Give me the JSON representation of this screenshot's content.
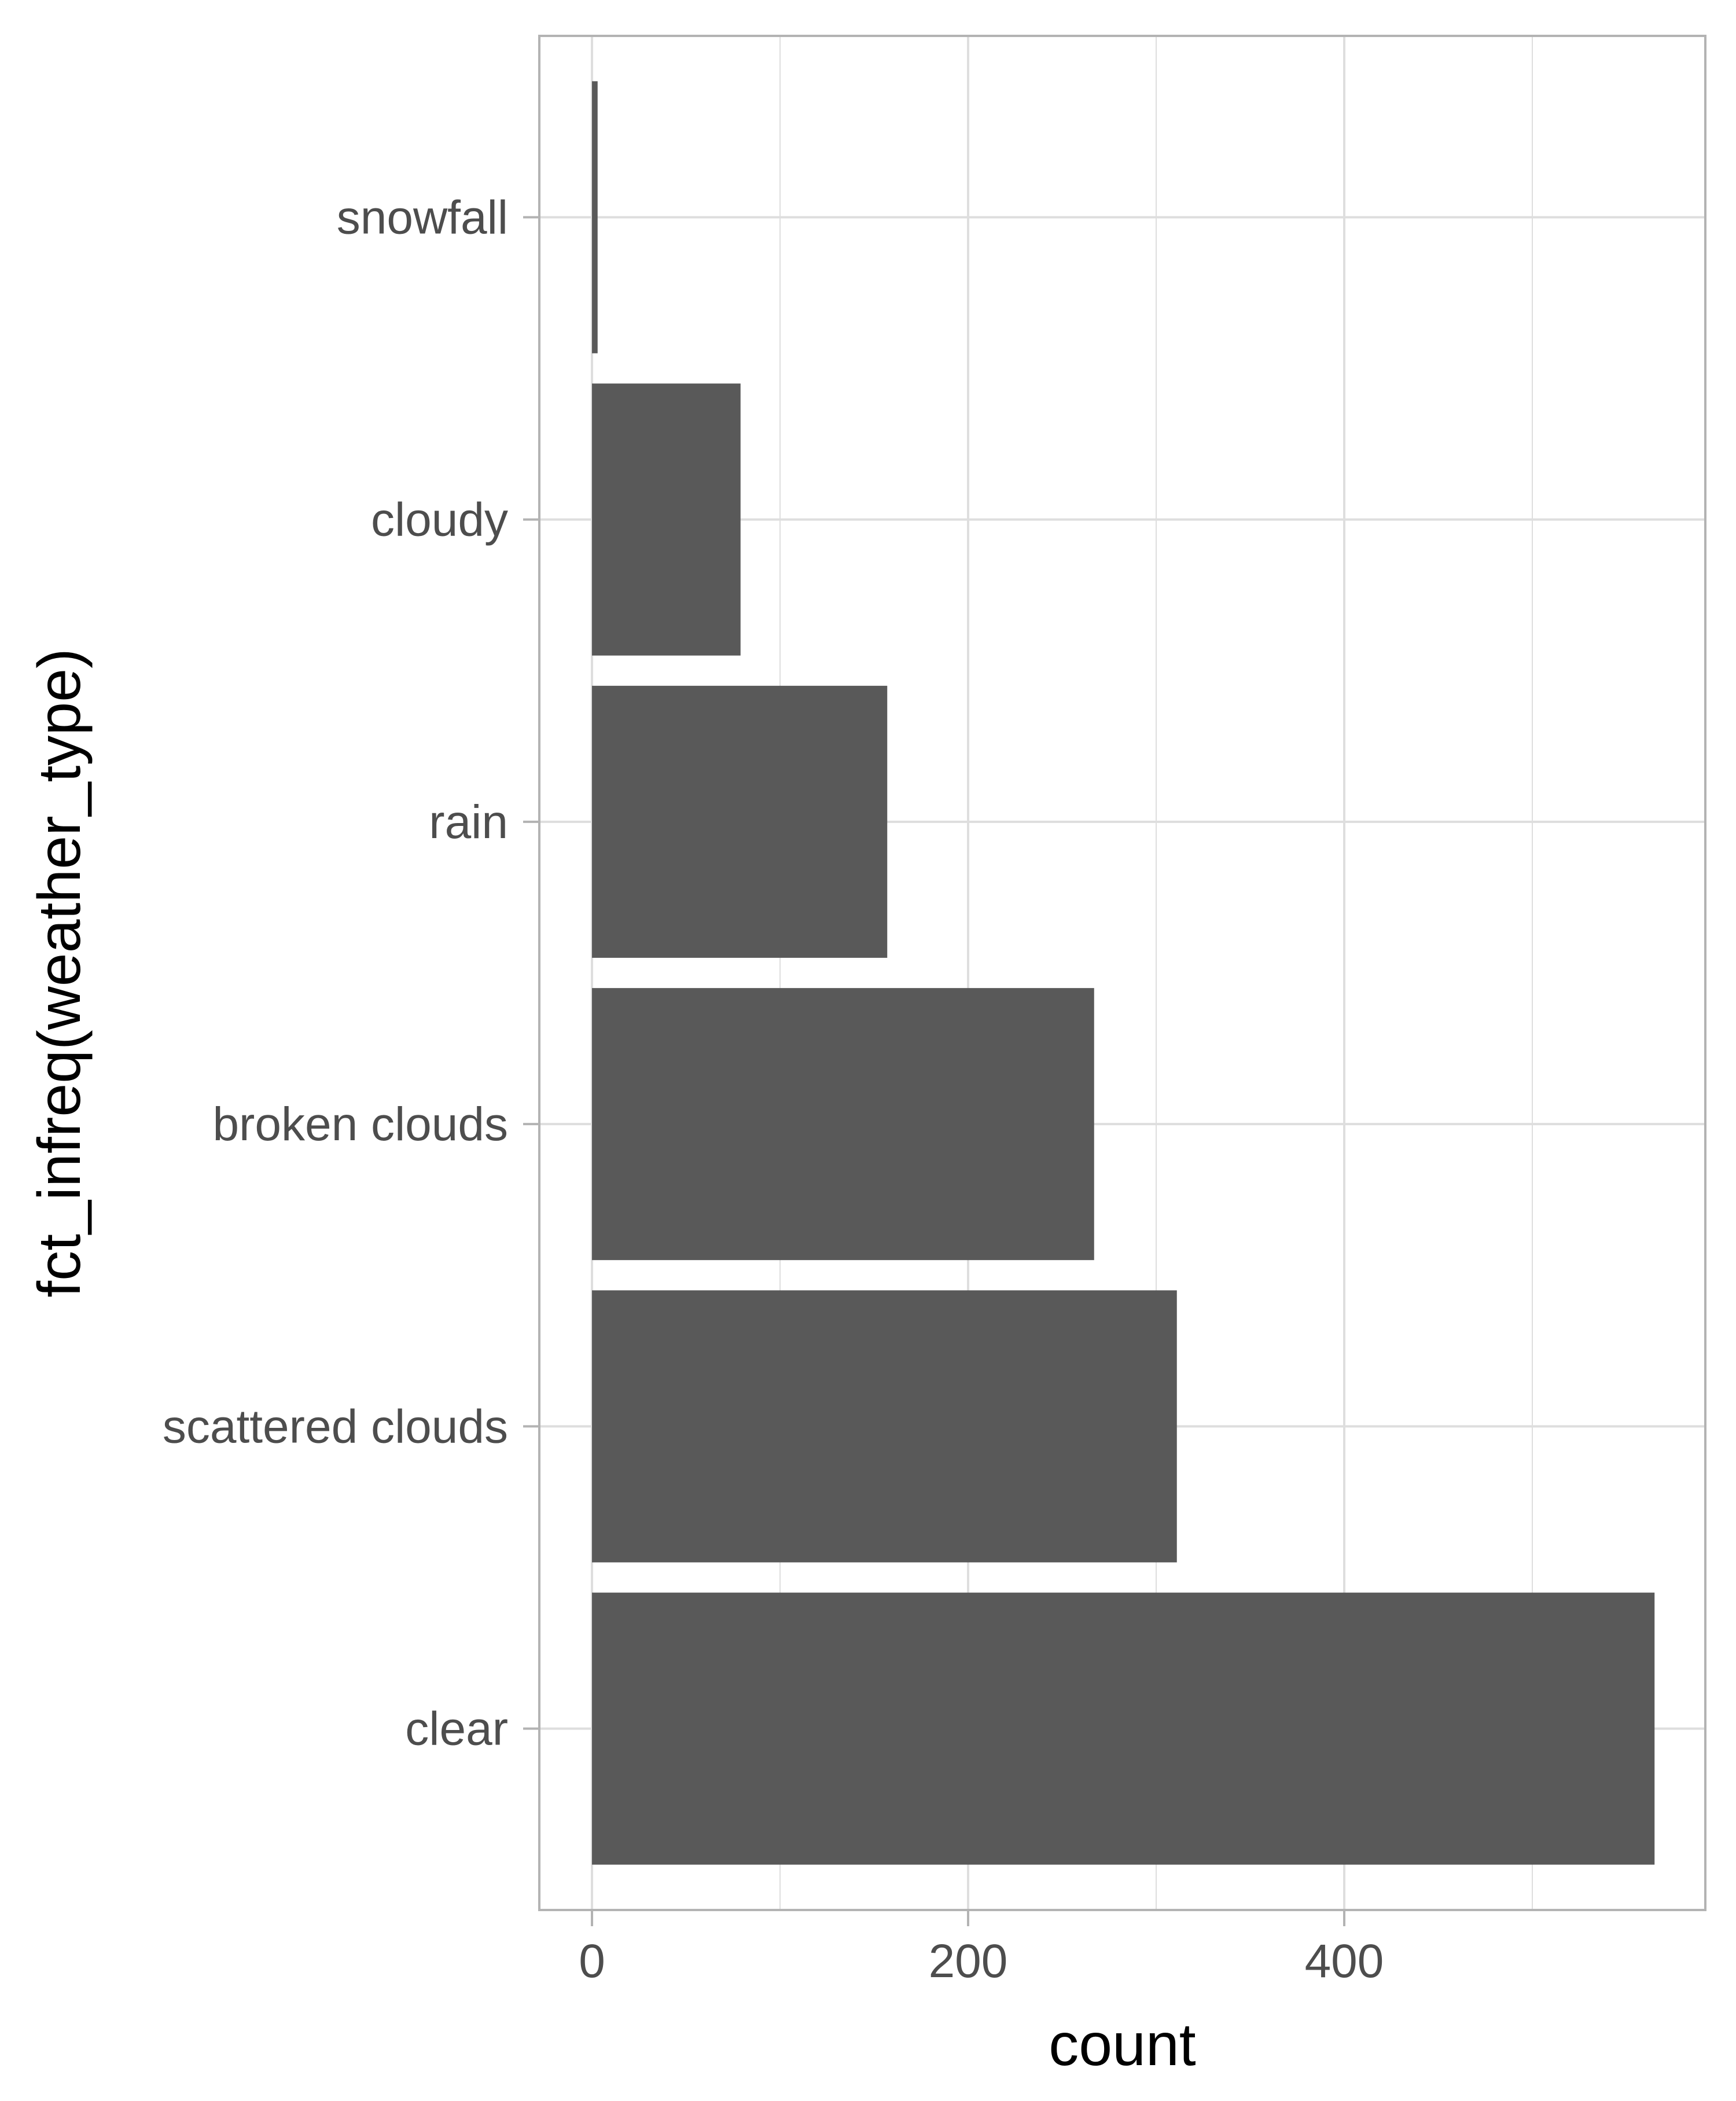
{
  "chart_data": {
    "type": "bar",
    "orientation": "horizontal",
    "categories": [
      "clear",
      "scattered clouds",
      "broken clouds",
      "rain",
      "cloudy",
      "snowfall"
    ],
    "values": [
      565,
      311,
      267,
      157,
      79,
      3
    ],
    "xlabel": "count",
    "ylabel": "fct_infreq(weather_type)",
    "xticks": [
      0,
      200,
      400
    ],
    "xlim": [
      -28,
      592
    ],
    "grid": true,
    "colors": {
      "bar": "#595959",
      "grid": "#dedede",
      "panel_border": "#b3b3b3",
      "tick": "#b3b3b3"
    }
  }
}
